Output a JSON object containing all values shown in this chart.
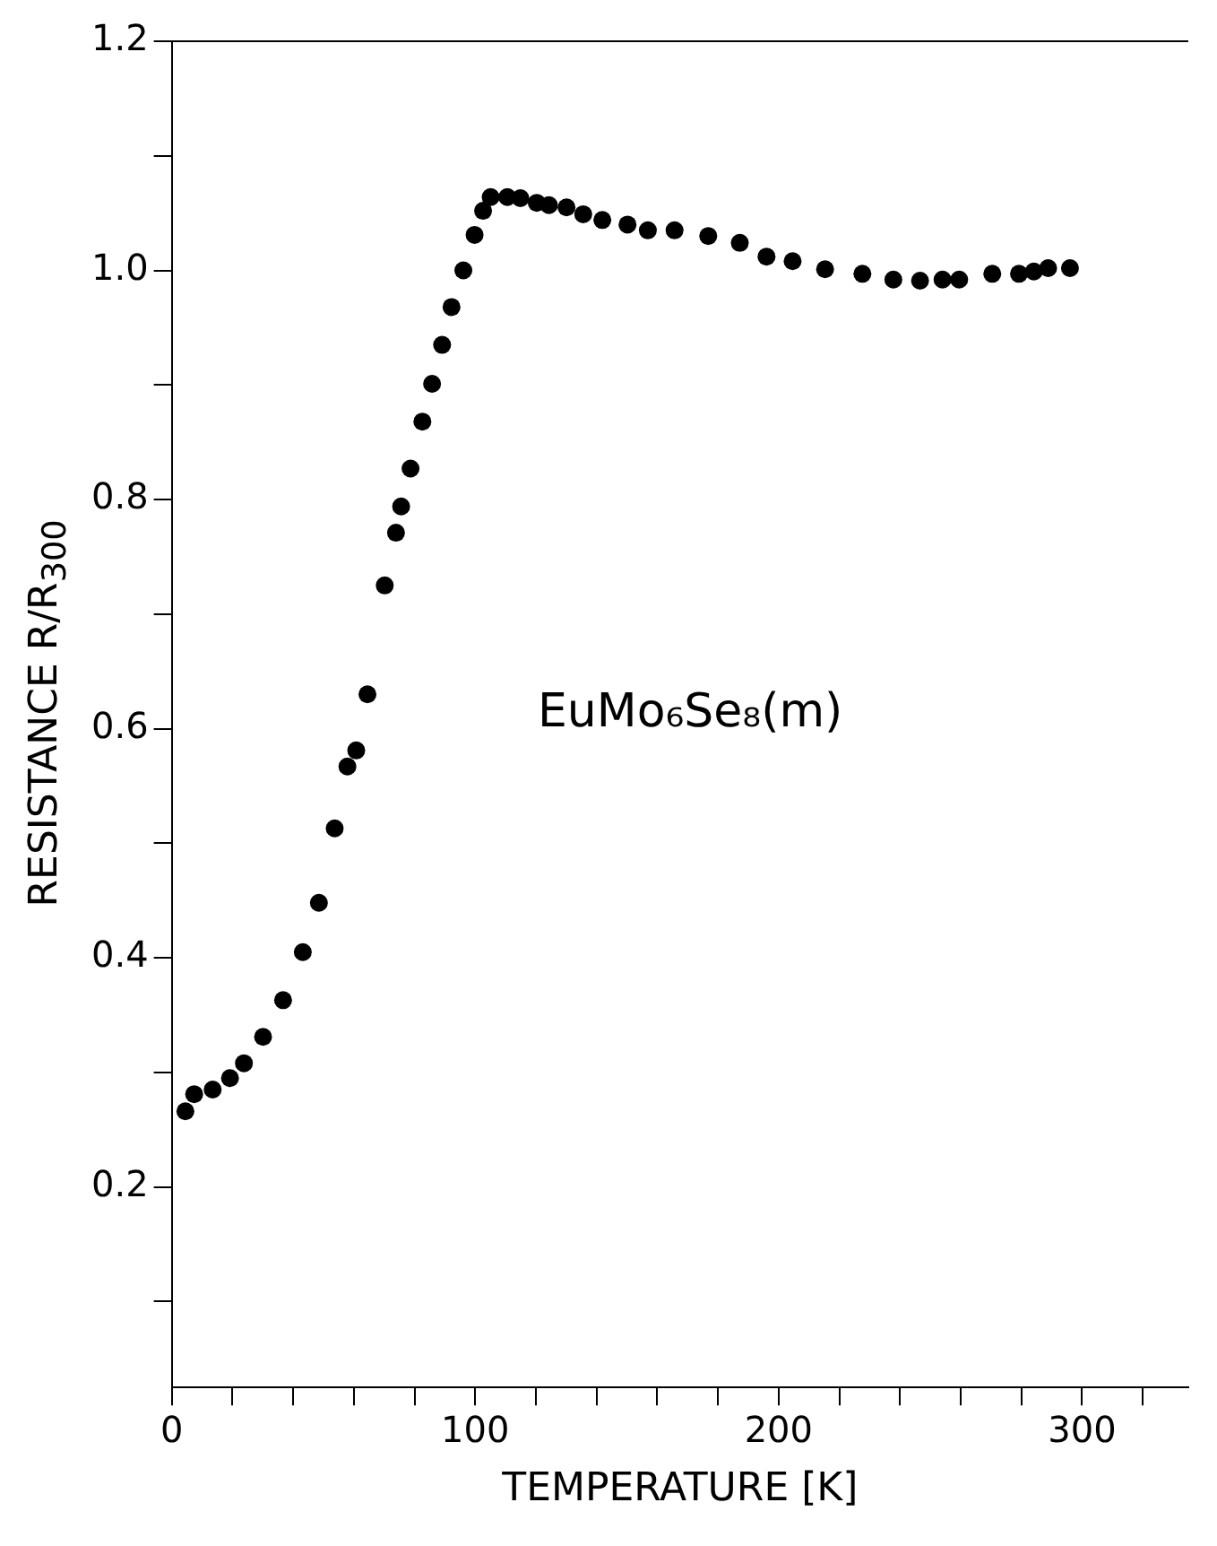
{
  "chart_data": {
    "type": "scatter",
    "xlabel": "TEMPERATURE [K]",
    "ylabel": "RESISTANCE R/R$_{300}$",
    "annotations": [
      "EuMo₆Se₈(m)"
    ],
    "marker": "circle",
    "series": [
      {
        "color": "#000000",
        "x": [
          4.5,
          7.4,
          13.5,
          19.2,
          23.8,
          30.1,
          36.7,
          43.2,
          48.5,
          53.7,
          57.9,
          60.8,
          64.5,
          70.2,
          73.9,
          75.6,
          78.7,
          82.6,
          85.8,
          89.1,
          92.2,
          96.1,
          99.8,
          102.6,
          105.1,
          110.6,
          114.9,
          120.3,
          124.3,
          130.1,
          135.6,
          141.9,
          150.2,
          156.9,
          165.7,
          176.8,
          187.2,
          196.0,
          204.6,
          215.3,
          227.6,
          237.8,
          246.6,
          254.0,
          259.5,
          270.4,
          279.2,
          284.1,
          288.8,
          296.0
        ],
        "values": [
          0.266,
          0.281,
          0.285,
          0.295,
          0.308,
          0.331,
          0.363,
          0.405,
          0.448,
          0.513,
          0.567,
          0.581,
          0.63,
          0.725,
          0.771,
          0.794,
          0.827,
          0.868,
          0.901,
          0.935,
          0.968,
          1.0,
          1.031,
          1.052,
          1.064,
          1.064,
          1.063,
          1.059,
          1.057,
          1.055,
          1.049,
          1.044,
          1.04,
          1.035,
          1.035,
          1.03,
          1.024,
          1.012,
          1.008,
          1.001,
          0.997,
          0.992,
          0.991,
          0.992,
          0.992,
          0.997,
          0.997,
          0.999,
          1.002,
          1.002
        ]
      }
    ],
    "xlim": [
      0,
      335
    ],
    "xticks": [
      0,
      {
        "value": 20,
        "label": null
      },
      {
        "value": 40,
        "label": null
      },
      {
        "value": 60,
        "label": null
      },
      {
        "value": 80,
        "label": null
      },
      100,
      {
        "value": 120,
        "label": null
      },
      {
        "value": 140,
        "label": null
      },
      {
        "value": 160,
        "label": null
      },
      {
        "value": 180,
        "label": null
      },
      200,
      {
        "value": 220,
        "label": null
      },
      {
        "value": 240,
        "label": null
      },
      {
        "value": 260,
        "label": null
      },
      {
        "value": 280,
        "label": null
      },
      300,
      {
        "value": 320,
        "label": null
      }
    ],
    "ylim": [
      0.025,
      1.2
    ],
    "yticks": [
      {
        "value": 0.1,
        "label": null
      },
      {
        "value": 0.2,
        "label": "0.2"
      },
      {
        "value": 0.3,
        "label": null
      },
      {
        "value": 0.4,
        "label": "0.4"
      },
      {
        "value": 0.5,
        "label": null
      },
      {
        "value": 0.6,
        "label": "0.6"
      },
      {
        "value": 0.7,
        "label": null
      },
      {
        "value": 0.8,
        "label": "0.8"
      },
      {
        "value": 0.9,
        "label": null
      },
      {
        "value": 1.0,
        "label": "1.0"
      },
      {
        "value": 1.1,
        "label": null
      },
      {
        "value": 1.2,
        "label": "1.2"
      }
    ],
    "grid": false,
    "legend": false
  }
}
